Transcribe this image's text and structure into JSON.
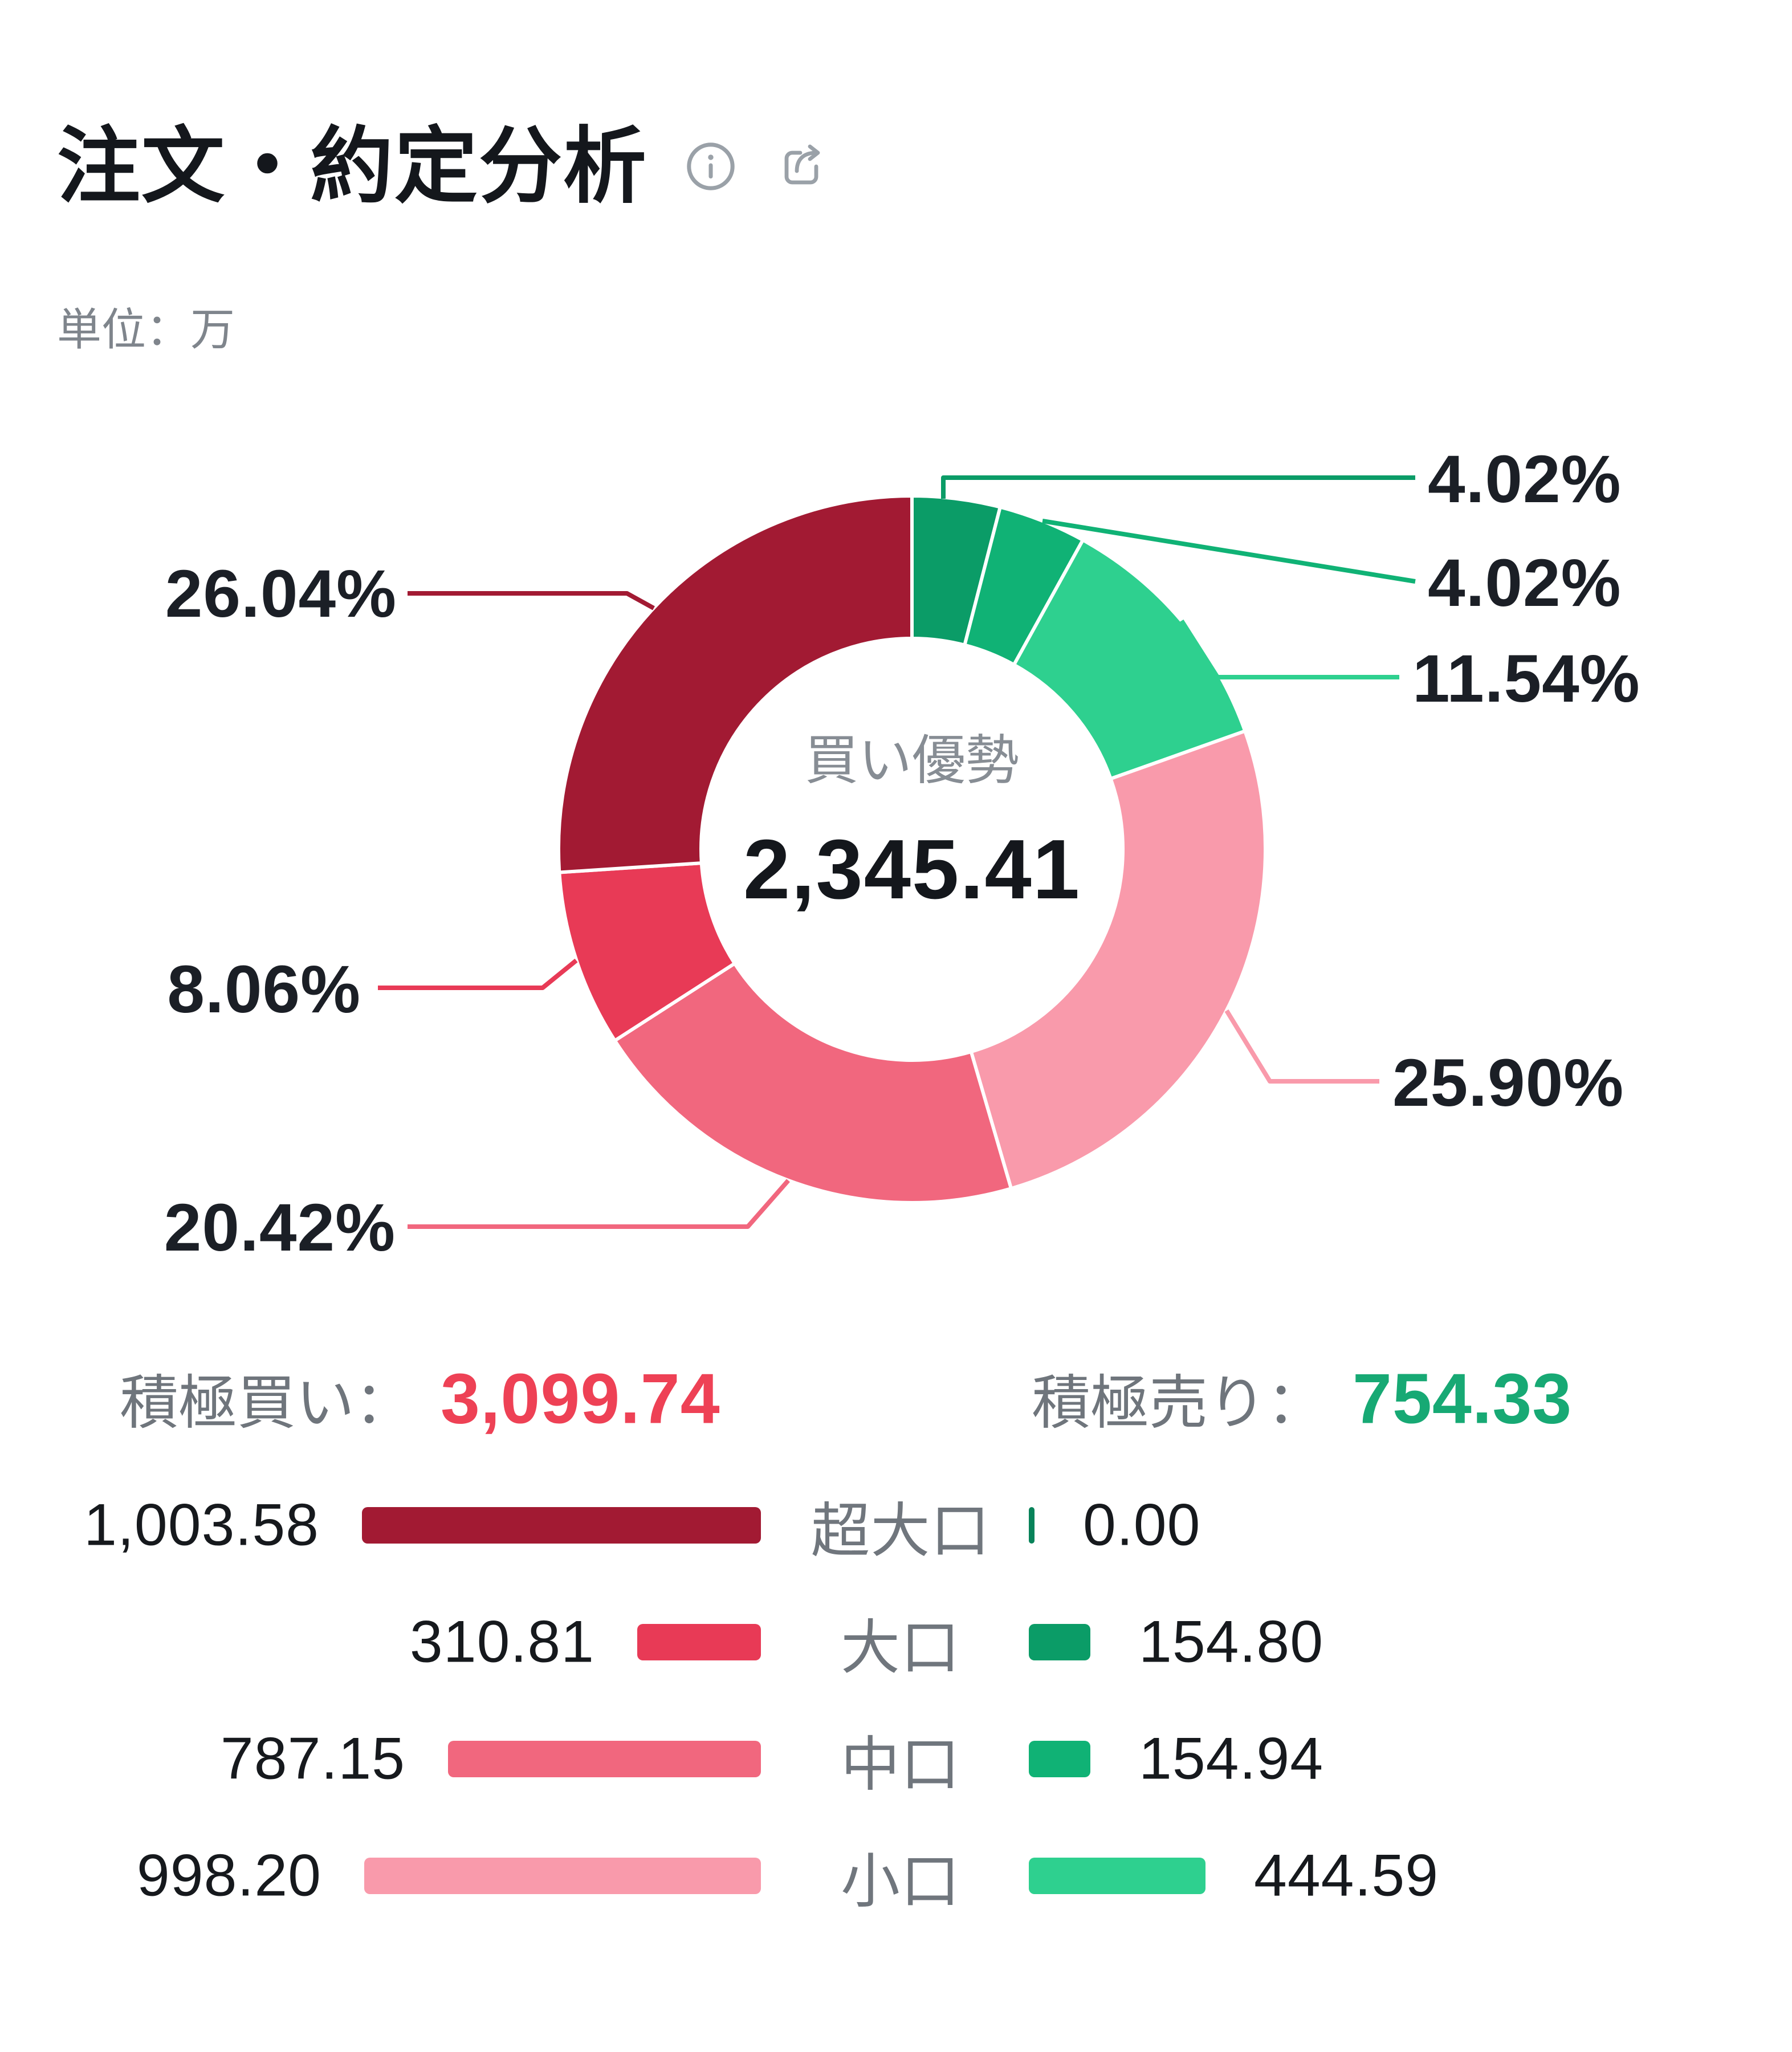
{
  "header": {
    "title": "注文・約定分析",
    "icons": {
      "info": "info-icon",
      "share": "share-icon"
    }
  },
  "unit_label": "単位：万",
  "chart_data": {
    "type": "pie",
    "subtype": "donut",
    "title": "注文・約定分析",
    "unit": "万",
    "legend_position": "bottom",
    "center": {
      "label": "買い優勢",
      "value": "2,345.41"
    },
    "total_buy": {
      "label": "積極買い：",
      "value": "3,099.74",
      "color": "#ee4155"
    },
    "total_sell": {
      "label": "積極売り：",
      "value": "754.33",
      "color": "#17a974"
    },
    "segments": [
      {
        "category": "超大口",
        "side": "sell",
        "value": 0.0,
        "pct": "0.00%",
        "color": "#09835a",
        "labeled": false
      },
      {
        "category": "大口",
        "side": "sell",
        "value": 154.8,
        "pct": "4.02%",
        "color": "#0b9c67",
        "labeled": true
      },
      {
        "category": "中口",
        "side": "sell",
        "value": 154.94,
        "pct": "4.02%",
        "color": "#10b275",
        "labeled": true
      },
      {
        "category": "小口",
        "side": "sell",
        "value": 444.59,
        "pct": "11.54%",
        "color": "#2ed08f",
        "labeled": true
      },
      {
        "category": "小口",
        "side": "buy",
        "value": 998.2,
        "pct": "25.90%",
        "color": "#f99aab",
        "labeled": true
      },
      {
        "category": "中口",
        "side": "buy",
        "value": 787.15,
        "pct": "20.42%",
        "color": "#f1677e",
        "labeled": true
      },
      {
        "category": "大口",
        "side": "buy",
        "value": 310.81,
        "pct": "8.06%",
        "color": "#e83a56",
        "labeled": true
      },
      {
        "category": "超大口",
        "side": "buy",
        "value": 1003.58,
        "pct": "26.04%",
        "color": "#a21a33",
        "labeled": true
      }
    ],
    "legend": {
      "categories": [
        "超大口",
        "大口",
        "中口",
        "小口"
      ],
      "buy_values": [
        "1,003.58",
        "310.81",
        "787.15",
        "998.20"
      ],
      "buy_values_num": [
        1003.58,
        310.81,
        787.15,
        998.2
      ],
      "buy_colors": [
        "#a21a33",
        "#e83a56",
        "#f1677e",
        "#f99aab"
      ],
      "sell_values": [
        "0.00",
        "154.80",
        "154.94",
        "444.59"
      ],
      "sell_values_num": [
        0.0,
        154.8,
        154.94,
        444.59
      ],
      "sell_colors": [
        "#09835a",
        "#0b9c67",
        "#10b275",
        "#2ed08f"
      ]
    }
  }
}
